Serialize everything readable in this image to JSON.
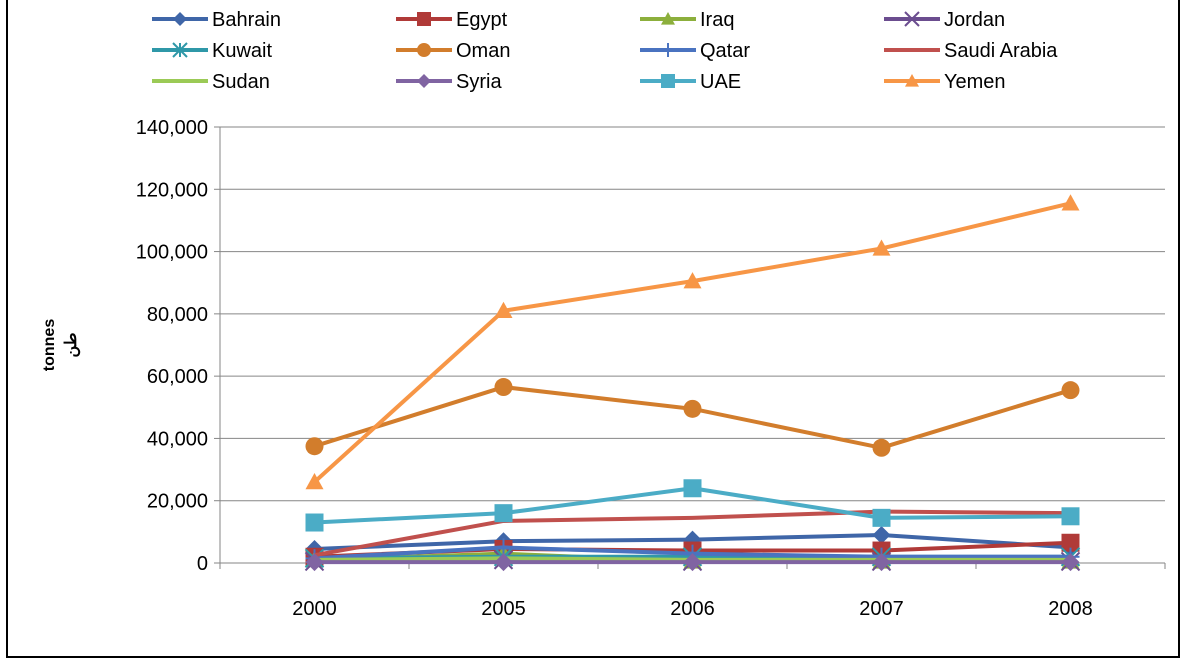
{
  "chart_data": {
    "type": "line",
    "ylabel": "tonnes",
    "ylabel_secondary": "طن",
    "categories": [
      "2000",
      "2005",
      "2006",
      "2007",
      "2008"
    ],
    "ylim": [
      0,
      140000
    ],
    "yticks": [
      0,
      20000,
      40000,
      60000,
      80000,
      100000,
      120000,
      140000
    ],
    "ytick_labels": [
      "0",
      "20,000",
      "40,000",
      "60,000",
      "80,000",
      "100,000",
      "120,000",
      "140,000"
    ],
    "grid": true,
    "legend_position": "top",
    "series": [
      {
        "name": "Bahrain",
        "color": "#3f66a8",
        "marker": "diamond",
        "values": [
          4500,
          7000,
          7500,
          9000,
          5000
        ]
      },
      {
        "name": "Egypt",
        "color": "#b03a38",
        "marker": "square",
        "values": [
          2000,
          4500,
          4000,
          4000,
          6500
        ]
      },
      {
        "name": "Iraq",
        "color": "#8caf3c",
        "marker": "triangle",
        "values": [
          1000,
          3000,
          500,
          500,
          500
        ]
      },
      {
        "name": "Jordan",
        "color": "#6b4d8f",
        "marker": "x",
        "values": [
          500,
          1000,
          500,
          500,
          500
        ]
      },
      {
        "name": "Kuwait",
        "color": "#2f98a8",
        "marker": "star",
        "values": [
          1500,
          2000,
          2000,
          2000,
          2000
        ]
      },
      {
        "name": "Oman",
        "color": "#d27d2c",
        "marker": "circle",
        "values": [
          37500,
          56500,
          49500,
          37000,
          55500
        ]
      },
      {
        "name": "Qatar",
        "color": "#4a73c0",
        "marker": "plus",
        "values": [
          1500,
          5000,
          3000,
          2000,
          2000
        ]
      },
      {
        "name": "Saudi Arabia",
        "color": "#c0504d",
        "marker": "none",
        "values": [
          2500,
          13500,
          14500,
          16500,
          16000
        ]
      },
      {
        "name": "Sudan",
        "color": "#9bca56",
        "marker": "none",
        "values": [
          1000,
          1500,
          1000,
          1000,
          1000
        ]
      },
      {
        "name": "Syria",
        "color": "#8064a2",
        "marker": "diamond",
        "values": [
          300,
          300,
          300,
          300,
          300
        ]
      },
      {
        "name": "UAE",
        "color": "#4bacc6",
        "marker": "square",
        "values": [
          13000,
          16000,
          24000,
          14500,
          15000
        ]
      },
      {
        "name": "Yemen",
        "color": "#f79646",
        "marker": "triangle",
        "values": [
          26000,
          81000,
          90500,
          101000,
          115500
        ]
      }
    ]
  }
}
